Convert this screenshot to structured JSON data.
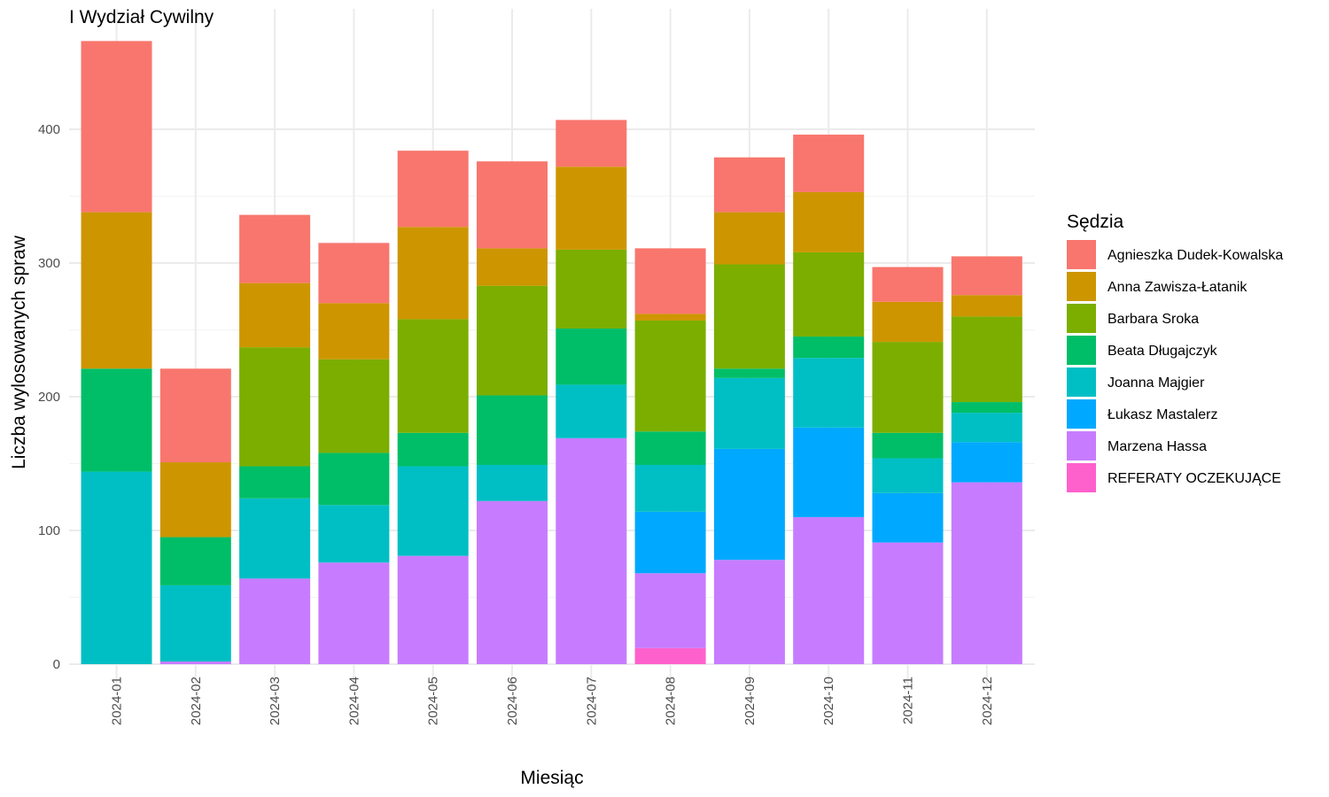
{
  "chart_data": {
    "type": "bar",
    "stacked": true,
    "title": "I Wydział Cywilny",
    "xlabel": "Miesiąc",
    "ylabel": "Liczba wylosowanych spraw",
    "ylim": [
      0,
      465
    ],
    "yticks": [
      0,
      100,
      200,
      300,
      400
    ],
    "grid": true,
    "legend_title": "Sędzia",
    "legend_position": "right",
    "categories": [
      "2024-01",
      "2024-02",
      "2024-03",
      "2024-04",
      "2024-05",
      "2024-06",
      "2024-07",
      "2024-08",
      "2024-09",
      "2024-10",
      "2024-11",
      "2024-12"
    ],
    "series": [
      {
        "name": "REFERATY OCZEKUJĄCE",
        "color": "#FF61CC",
        "values": [
          0,
          0,
          0,
          0,
          0,
          0,
          0,
          12,
          0,
          0,
          0,
          0
        ]
      },
      {
        "name": "Marzena Hassa",
        "color": "#C77CFF",
        "values": [
          0,
          2,
          64,
          76,
          81,
          122,
          169,
          56,
          78,
          110,
          91,
          136
        ]
      },
      {
        "name": "Łukasz Mastalerz",
        "color": "#00A9FF",
        "values": [
          0,
          0,
          0,
          0,
          0,
          0,
          0,
          46,
          83,
          67,
          37,
          30
        ]
      },
      {
        "name": "Joanna Majgier",
        "color": "#00BFC4",
        "values": [
          144,
          57,
          60,
          43,
          67,
          27,
          40,
          35,
          53,
          52,
          26,
          22
        ]
      },
      {
        "name": "Beata Długajczyk",
        "color": "#00BE67",
        "values": [
          77,
          36,
          24,
          39,
          25,
          52,
          42,
          25,
          7,
          16,
          19,
          8
        ]
      },
      {
        "name": "Barbara Sroka",
        "color": "#7CAE00",
        "values": [
          0,
          0,
          89,
          70,
          85,
          82,
          59,
          83,
          78,
          63,
          68,
          64
        ]
      },
      {
        "name": "Anna Zawisza-Łatanik",
        "color": "#CD9600",
        "values": [
          117,
          56,
          48,
          42,
          69,
          28,
          62,
          5,
          39,
          45,
          30,
          16
        ]
      },
      {
        "name": "Agnieszka Dudek-Kowalska",
        "color": "#F8766D",
        "values": [
          128,
          70,
          51,
          45,
          57,
          65,
          35,
          49,
          41,
          43,
          26,
          29
        ]
      }
    ],
    "legend_order": [
      "Agnieszka Dudek-Kowalska",
      "Anna Zawisza-Łatanik",
      "Barbara Sroka",
      "Beata Długajczyk",
      "Joanna Majgier",
      "Łukasz Mastalerz",
      "Marzena Hassa",
      "REFERATY OCZEKUJĄCE"
    ]
  }
}
